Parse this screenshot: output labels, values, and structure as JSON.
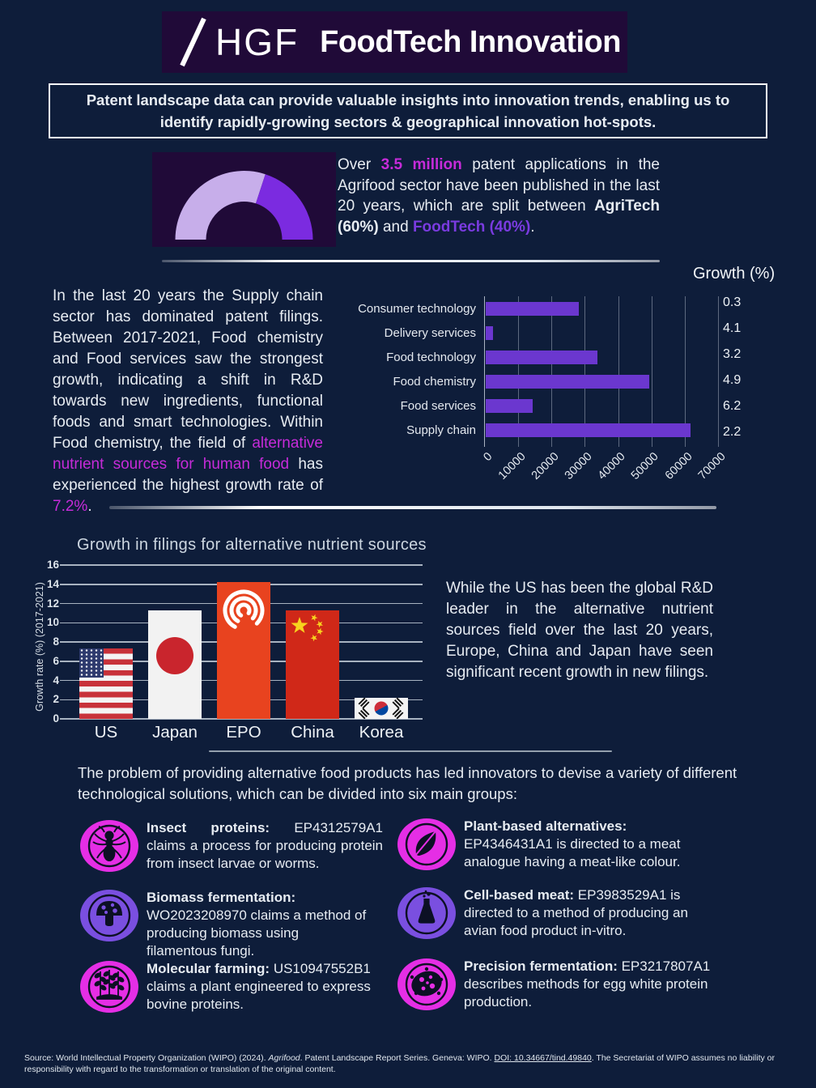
{
  "colors": {
    "accent_magenta": "#c62bd9",
    "accent_purple": "#7a3be0",
    "bar_purple": "#6b37cf",
    "gauge_light": "#c7aeea",
    "gauge_dark": "#7b2be0",
    "icon_magenta": "#e52ee5",
    "icon_purple": "#7a4fe0",
    "epo_red": "#e8431f"
  },
  "header": {
    "logo_text": "HGF",
    "title": "FoodTech Innovation"
  },
  "banner": "Patent landscape data can provide valuable insights into innovation trends, enabling us to identify rapidly-growing sectors & geographical innovation hot-spots.",
  "overview": {
    "parts": [
      {
        "t": "Over ",
        "s": ""
      },
      {
        "t": "3.5 million",
        "s": "mb"
      },
      {
        "t": " patent applications in the Agrifood sector have been published in the last 20 years, which are split between ",
        "s": ""
      },
      {
        "t": "AgriTech (60%)",
        "s": "wb"
      },
      {
        "t": " and ",
        "s": ""
      },
      {
        "t": "FoodTech (40%)",
        "s": "pb"
      },
      {
        "t": ".",
        "s": ""
      }
    ]
  },
  "supply_para": {
    "parts": [
      {
        "t": "In the last 20 years the Supply chain sector has dominated patent filings. Between 2017-2021, Food chemistry and Food services saw the strongest growth, indicating a shift in R&D towards new ingredients, functional foods and smart technologies. Within Food chemistry, the field of ",
        "s": ""
      },
      {
        "t": "alternative nutrient sources for human food",
        "s": "m"
      },
      {
        "t": " has experienced the highest growth rate of ",
        "s": ""
      },
      {
        "t": "7.2%",
        "s": "m"
      },
      {
        "t": ".",
        "s": ""
      }
    ]
  },
  "rnd_para": "While the US has been the global R&D leader in the alternative nutrient sources field over the last 20 years, Europe, China and Japan have seen significant recent growth in new filings.",
  "solutions_intro": "The problem of providing alternative food products has led innovators to devise a variety of different technological solutions, which can be divided into six main groups:",
  "groups": [
    {
      "icon": "ant-icon",
      "color": "magenta",
      "title": "Insect proteins:",
      "text": "EP4312579A1 claims a process for producing protein from insect larvae or worms.",
      "stacked": false
    },
    {
      "icon": "mushroom-icon",
      "color": "purple",
      "title": "Biomass fermentation:",
      "text": "WO2023208970 claims a method of producing biomass using filamentous fungi.",
      "stacked": true
    },
    {
      "icon": "wheat-icon",
      "color": "magenta",
      "title": "Molecular farming:",
      "text": "US10947552B1 claims a plant engineered to express bovine proteins.",
      "stacked": false
    },
    {
      "icon": "leaf-icon",
      "color": "magenta",
      "title": "Plant-based alternatives:",
      "text": "EP4346431A1 is directed to a meat analogue having a meat-like colour.",
      "stacked": true
    },
    {
      "icon": "flask-icon",
      "color": "purple",
      "title": "Cell-based meat:",
      "text": "EP3983529A1 is directed to a method of producing an avian food product in-vitro.",
      "stacked": false
    },
    {
      "icon": "microbe-icon",
      "color": "magenta",
      "title": "Precision fermentation:",
      "text": "EP3217807A1 describes methods for egg white protein production.",
      "stacked": false
    }
  ],
  "footer": {
    "parts": [
      {
        "t": "Source: World Intellectual Property Organization (WIPO) (2024). ",
        "s": ""
      },
      {
        "t": "Agrifood",
        "s": "i"
      },
      {
        "t": ". Patent Landscape Report Series. Geneva: WIPO. ",
        "s": ""
      },
      {
        "t": "DOI: 10.34667/tind.49840",
        "s": "u"
      },
      {
        "t": ". The Secretariat of WIPO assumes no liability or responsibility with regard to the transformation or translation of the original content.",
        "s": ""
      }
    ]
  },
  "chart_data": [
    {
      "type": "pie",
      "title": "Agrifood patent applications split",
      "slices": [
        {
          "name": "AgriTech",
          "value": 60
        },
        {
          "name": "FoodTech",
          "value": 40
        }
      ],
      "note": "semicircular donut gauge, AgriTech light purple from left, FoodTech dark purple"
    },
    {
      "type": "bar",
      "orientation": "horizontal",
      "title": "Patent filings by sector (last 20 years)",
      "categories": [
        "Consumer technology",
        "Delivery services",
        "Food technology",
        "Food chemistry",
        "Food services",
        "Supply chain"
      ],
      "values": [
        28000,
        2200,
        33500,
        49000,
        14000,
        61500
      ],
      "growth_header": "Growth (%)",
      "growth": [
        "0.3",
        "4.1",
        "3.2",
        "4.9",
        "6.2",
        "2.2"
      ],
      "xlim": [
        0,
        70000
      ],
      "xticks": [
        0,
        10000,
        20000,
        30000,
        40000,
        50000,
        60000,
        70000
      ],
      "grid": "vertical"
    },
    {
      "type": "bar",
      "title": "Growth in filings for alternative nutrient sources",
      "categories": [
        "US",
        "Japan",
        "EPO",
        "China",
        "Korea"
      ],
      "values": [
        7.3,
        11.3,
        14.2,
        11.3,
        2.2
      ],
      "flags": [
        "us",
        "japan",
        "epo",
        "china",
        "korea"
      ],
      "ylabel": "Growth rate (%) (2017-2021)",
      "ylim": [
        0,
        16
      ],
      "yticks": [
        0,
        2,
        4,
        6,
        8,
        10,
        12,
        14,
        16
      ],
      "grid": "horizontal"
    }
  ]
}
